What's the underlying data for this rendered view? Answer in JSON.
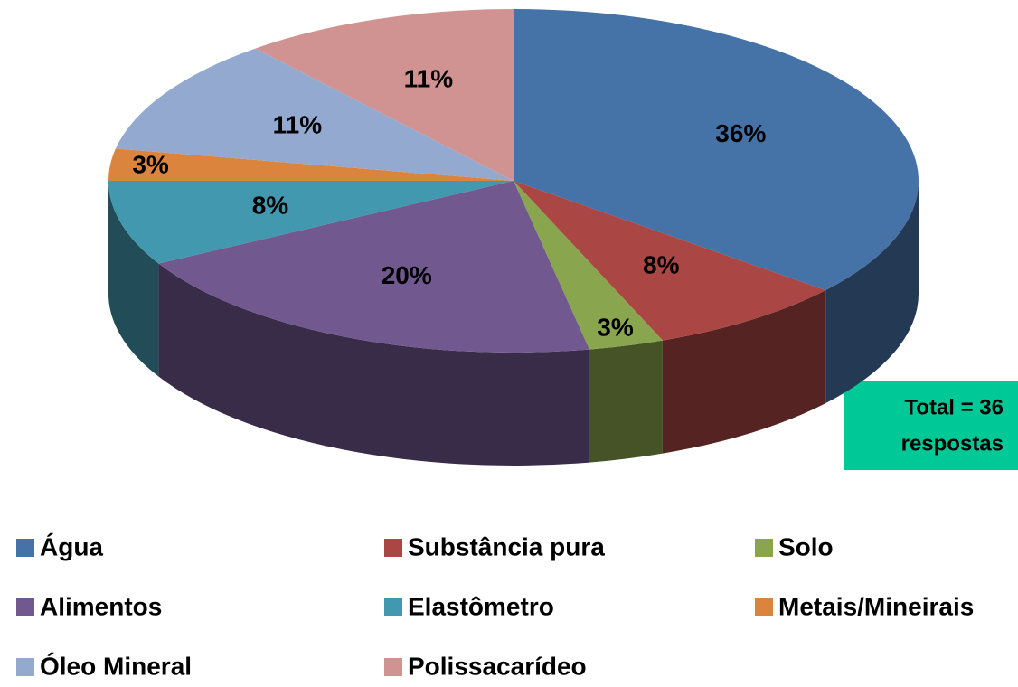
{
  "chart_data": {
    "type": "pie3d",
    "categories": [
      "Água",
      "Substância pura",
      "Solo",
      "Alimentos",
      "Elastômetro",
      "Metais/Mineirais",
      "Óleo Mineral",
      "Polissacarídeo"
    ],
    "values": [
      36,
      8,
      3,
      20,
      8,
      3,
      11,
      11
    ],
    "value_labels": [
      "36%",
      "8%",
      "3%",
      "20%",
      "8%",
      "3%",
      "11%",
      "11%"
    ],
    "colors": [
      "#4572a7",
      "#aa4643",
      "#89a54e",
      "#71588f",
      "#4198af",
      "#db843d",
      "#93a9cf",
      "#d19392"
    ],
    "annotation": [
      "Total = 36",
      "respostas"
    ],
    "legend": "bottom"
  }
}
